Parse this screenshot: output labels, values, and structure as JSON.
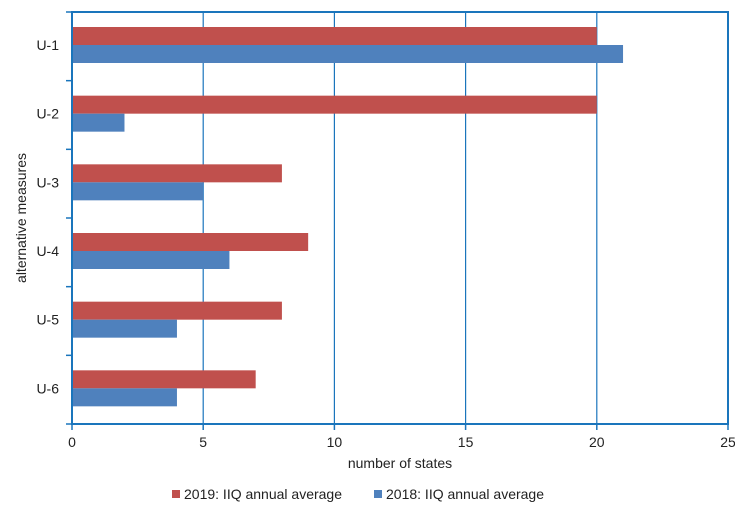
{
  "chart_data": {
    "type": "bar",
    "orientation": "horizontal",
    "categories": [
      "U-1",
      "U-2",
      "U-3",
      "U-4",
      "U-5",
      "U-6"
    ],
    "series": [
      {
        "name": "2019: IIQ annual average",
        "color": "#c0504d",
        "values": [
          20,
          20,
          8,
          9,
          8,
          7
        ]
      },
      {
        "name": "2018: IIQ annual average",
        "color": "#4f81bd",
        "values": [
          21,
          2,
          5,
          6,
          4,
          4
        ]
      }
    ],
    "xlabel": "number of states",
    "ylabel": "alternative measures",
    "xlim": [
      0,
      25
    ],
    "xticks": [
      "0",
      "5",
      "10",
      "15",
      "20",
      "25"
    ],
    "grid": "vertical",
    "legend_position": "bottom",
    "colors": {
      "frame": "#1a75bc",
      "gridline": "#1a75bc"
    }
  }
}
